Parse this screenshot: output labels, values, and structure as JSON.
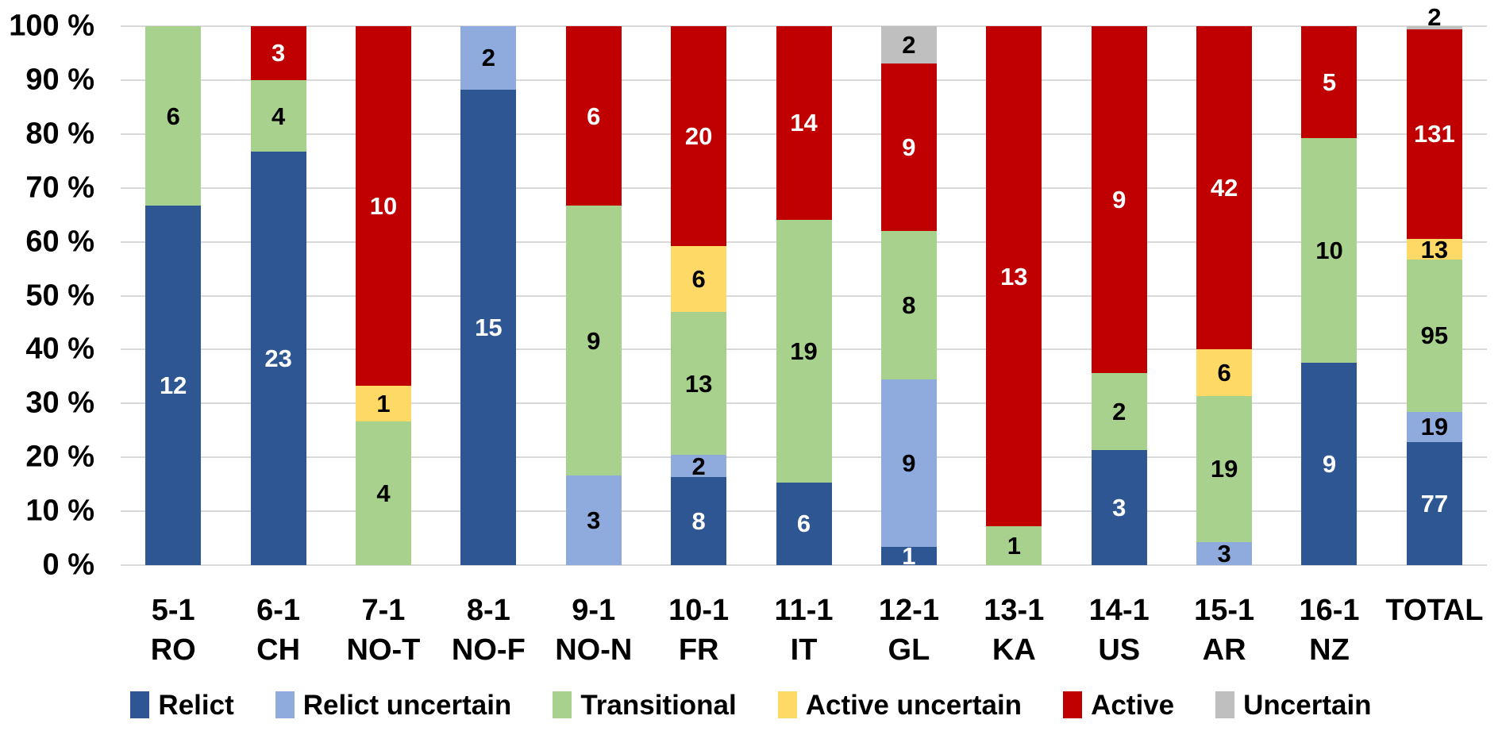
{
  "chart_data": {
    "type": "bar",
    "subtype": "stacked-100-percent",
    "title": "",
    "xlabel": "",
    "ylabel": "",
    "grid": true,
    "gridline_color": "#D9D9D9",
    "legend_position": "bottom",
    "y_axis": {
      "min": 0,
      "max": 100,
      "step": 10,
      "tick_labels": [
        "100 %",
        "90 %",
        "80 %",
        "70 %",
        "60 %",
        "50 %",
        "40 %",
        "30 %",
        "20 %",
        "10 %",
        "0 %"
      ]
    },
    "series": [
      {
        "name": "Relict",
        "color": "#2E5693",
        "label_color": "#FFFFFF"
      },
      {
        "name": "Relict uncertain",
        "color": "#8FAADC",
        "label_color": "#000000"
      },
      {
        "name": "Transitional",
        "color": "#A9D18E",
        "label_color": "#000000"
      },
      {
        "name": "Active uncertain",
        "color": "#FFD966",
        "label_color": "#000000"
      },
      {
        "name": "Active",
        "color": "#C00000",
        "label_color": "#FFFFFF"
      },
      {
        "name": "Uncertain",
        "color": "#BFBFBF",
        "label_color": "#000000"
      }
    ],
    "categories": [
      {
        "code": "5-1",
        "site": "RO",
        "values": [
          12,
          0,
          6,
          0,
          0,
          0
        ]
      },
      {
        "code": "6-1",
        "site": "CH",
        "values": [
          23,
          0,
          4,
          0,
          3,
          0
        ]
      },
      {
        "code": "7-1",
        "site": "NO-T",
        "values": [
          0,
          0,
          4,
          1,
          10,
          0
        ]
      },
      {
        "code": "8-1",
        "site": "NO-F",
        "values": [
          15,
          2,
          0,
          0,
          0,
          0
        ]
      },
      {
        "code": "9-1",
        "site": "NO-N",
        "values": [
          0,
          3,
          9,
          0,
          6,
          0
        ]
      },
      {
        "code": "10-1",
        "site": "FR",
        "values": [
          8,
          2,
          13,
          6,
          20,
          0
        ]
      },
      {
        "code": "11-1",
        "site": "IT",
        "values": [
          6,
          0,
          19,
          0,
          14,
          0
        ]
      },
      {
        "code": "12-1",
        "site": "GL",
        "values": [
          1,
          9,
          8,
          0,
          9,
          2
        ]
      },
      {
        "code": "13-1",
        "site": "KA",
        "values": [
          0,
          0,
          1,
          0,
          13,
          0
        ]
      },
      {
        "code": "14-1",
        "site": "US",
        "values": [
          3,
          0,
          2,
          0,
          9,
          0
        ]
      },
      {
        "code": "15-1",
        "site": "AR",
        "values": [
          0,
          3,
          19,
          6,
          42,
          0
        ]
      },
      {
        "code": "16-1",
        "site": "NZ",
        "values": [
          9,
          0,
          10,
          0,
          5,
          0
        ]
      },
      {
        "code": "TOTAL",
        "site": "",
        "values": [
          77,
          19,
          95,
          13,
          131,
          2
        ]
      }
    ]
  }
}
